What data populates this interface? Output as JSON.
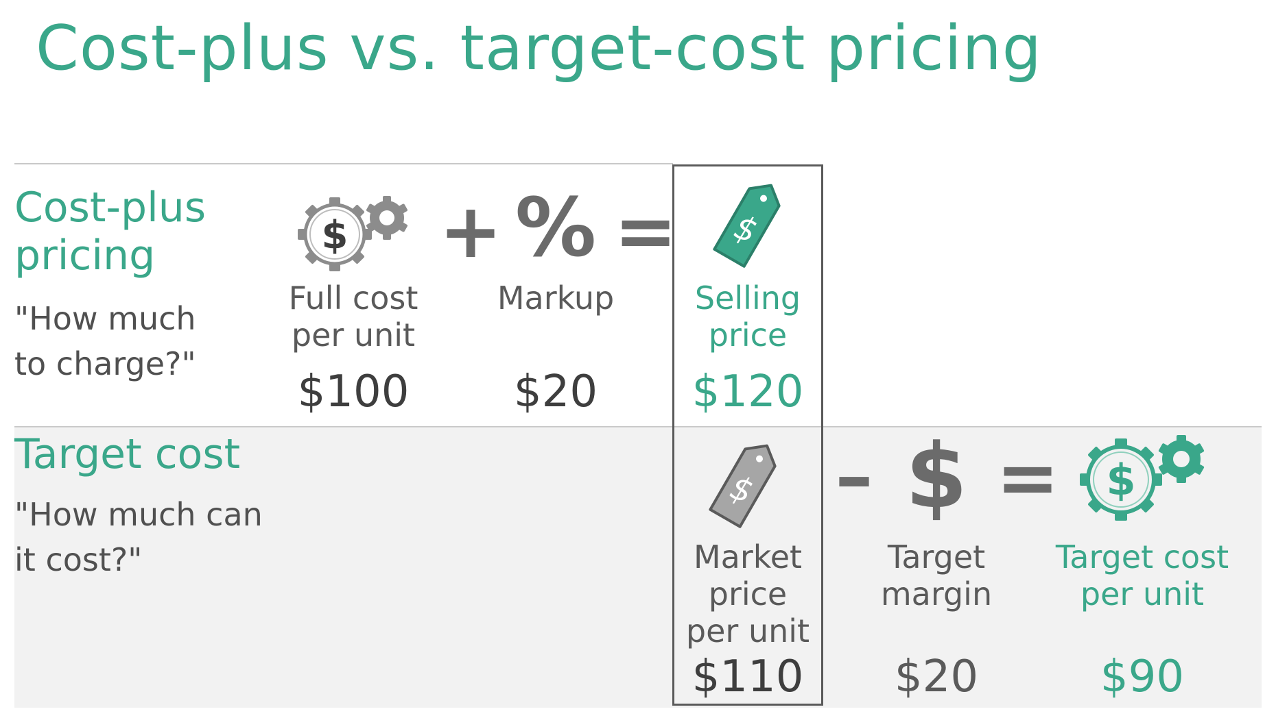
{
  "title": "Cost-plus vs. target-cost pricing",
  "colors": {
    "accent": "#3aa78a",
    "text_dark": "#3e3e3e",
    "gray_icon": "#8c8c8c",
    "band": "#f2f2f2"
  },
  "cost_plus": {
    "title_line1": "Cost-plus",
    "title_line2": "pricing",
    "question_line1": "\"How much",
    "question_line2": "to charge?\"",
    "full_cost": {
      "label_line1": "Full cost",
      "label_line2": "per unit",
      "value": "$100",
      "icon": "dollar-gear-icon"
    },
    "op_plus": "+",
    "markup": {
      "symbol": "%",
      "label": "Markup",
      "value": "$20"
    },
    "op_equals": "=",
    "selling_price": {
      "label_line1": "Selling",
      "label_line2": "price",
      "value": "$120",
      "icon": "price-tag-icon"
    }
  },
  "target_cost": {
    "title": "Target cost",
    "question_line1": "\"How much can",
    "question_line2": "it cost?\"",
    "market_price": {
      "label_line1": "Market",
      "label_line2": "price",
      "label_line3": "per unit",
      "value": "$110",
      "icon": "price-tag-icon"
    },
    "op_minus": "–",
    "target_margin": {
      "symbol": "$",
      "label_line1": "Target",
      "label_line2": "margin",
      "value": "$20"
    },
    "op_equals": "=",
    "target_cost_per_unit": {
      "label_line1": "Target cost",
      "label_line2": "per unit",
      "value": "$90",
      "icon": "dollar-gear-icon"
    }
  }
}
